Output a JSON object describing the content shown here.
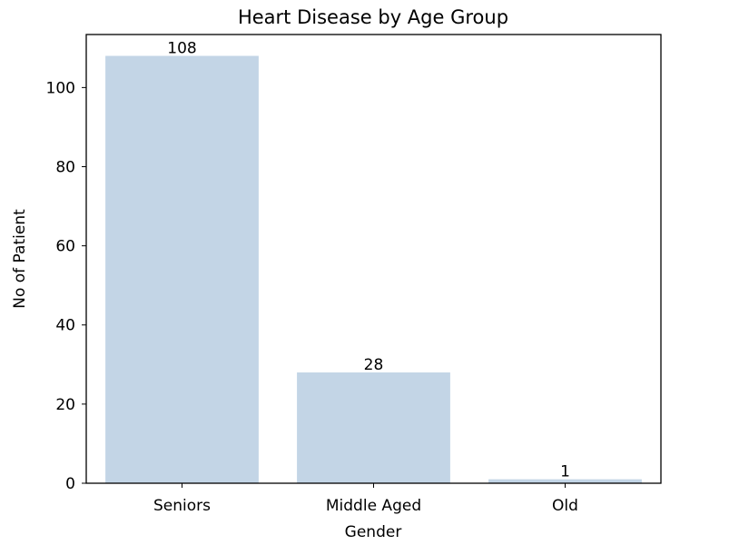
{
  "chart_data": {
    "type": "bar",
    "title": "Heart Disease by Age Group",
    "xlabel": "Gender",
    "ylabel": "No of Patient",
    "categories": [
      "Seniors",
      "Middle Aged",
      "Old"
    ],
    "values": [
      108,
      28,
      1
    ],
    "data_labels": [
      "108",
      "28",
      "1"
    ],
    "ylim": [
      0,
      113.4
    ],
    "yticks": [
      0,
      20,
      40,
      60,
      80,
      100
    ],
    "ytick_labels": [
      "0",
      "20",
      "40",
      "60",
      "80",
      "100"
    ],
    "grid": false,
    "legend": "none",
    "bar_color": "#c3d5e6"
  }
}
